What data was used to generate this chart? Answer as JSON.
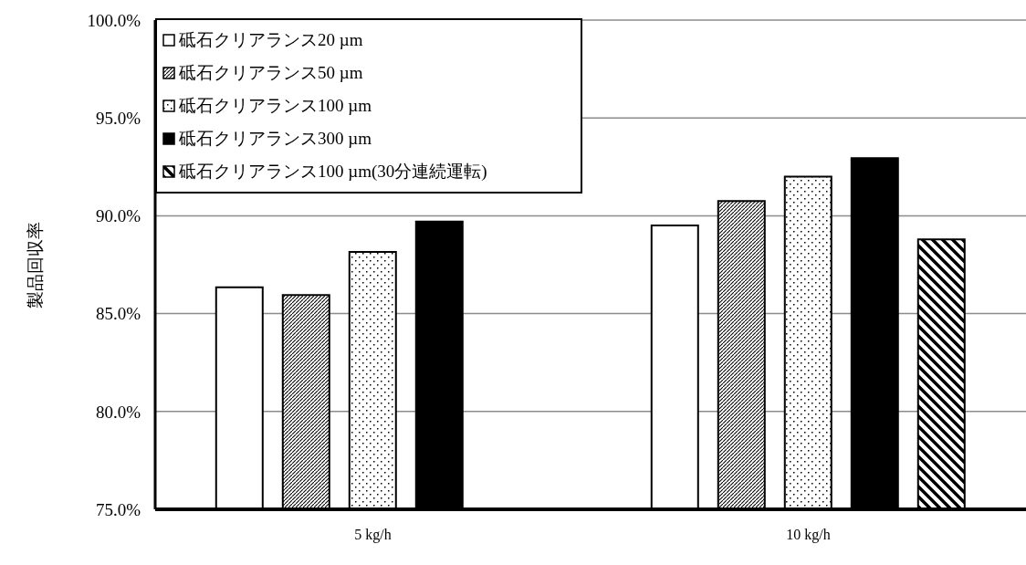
{
  "chart_data": {
    "type": "bar",
    "ylabel": "製品回収率",
    "categories": [
      "5 kg/h",
      "10 kg/h"
    ],
    "series": [
      {
        "name": "砥石クリアランス20 µm",
        "color": "#ffffff",
        "values": [
          86.35,
          89.5
        ]
      },
      {
        "name": "砥石クリアランス50 µm",
        "color": "#000000",
        "values": [
          85.95,
          90.75
        ]
      },
      {
        "name": "砥石クリアランス100 µm",
        "color": "#000000",
        "values": [
          88.15,
          92.0
        ]
      },
      {
        "name": "砥石クリアランス300 µm",
        "color": "#000000",
        "values": [
          89.7,
          92.95
        ]
      },
      {
        "name": "砥石クリアランス100 µm(30分連続運転)",
        "color": "#000000",
        "values": [
          null,
          88.8
        ]
      }
    ],
    "ylim": [
      75,
      100
    ],
    "yticks": [
      {
        "value": 75,
        "label": "75.0%"
      },
      {
        "value": 80,
        "label": "80.0%"
      },
      {
        "value": 85,
        "label": "85.0%"
      },
      {
        "value": 90,
        "label": "90.0%"
      },
      {
        "value": 95,
        "label": "95.0%"
      },
      {
        "value": 100,
        "label": "100.0%"
      }
    ],
    "grid": "y",
    "legend": "top left"
  }
}
